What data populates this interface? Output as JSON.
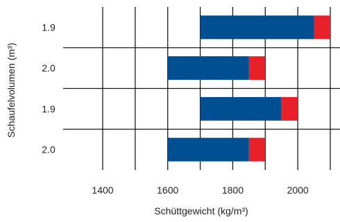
{
  "chart_data": {
    "type": "bar",
    "orientation": "horizontal",
    "stacked": true,
    "title": "",
    "xlabel": "Schüttgewicht (kg/m³)",
    "ylabel": "Schaufelvolumen (m³)",
    "categories": [
      "1.9",
      "2.0",
      "1.9",
      "2.0"
    ],
    "xlim": [
      1300,
      2100
    ],
    "xticks": [
      1400,
      1600,
      1800,
      2000
    ],
    "grid": true,
    "legend": "none",
    "series": [
      {
        "color": "#004f93",
        "start": [
          1700,
          1600,
          1700,
          1600
        ],
        "end": [
          2050,
          1850,
          1950,
          1850
        ]
      },
      {
        "color": "#e8202a",
        "start": [
          2050,
          1850,
          1950,
          1850
        ],
        "end": [
          2100,
          1900,
          2000,
          1900
        ]
      }
    ]
  }
}
